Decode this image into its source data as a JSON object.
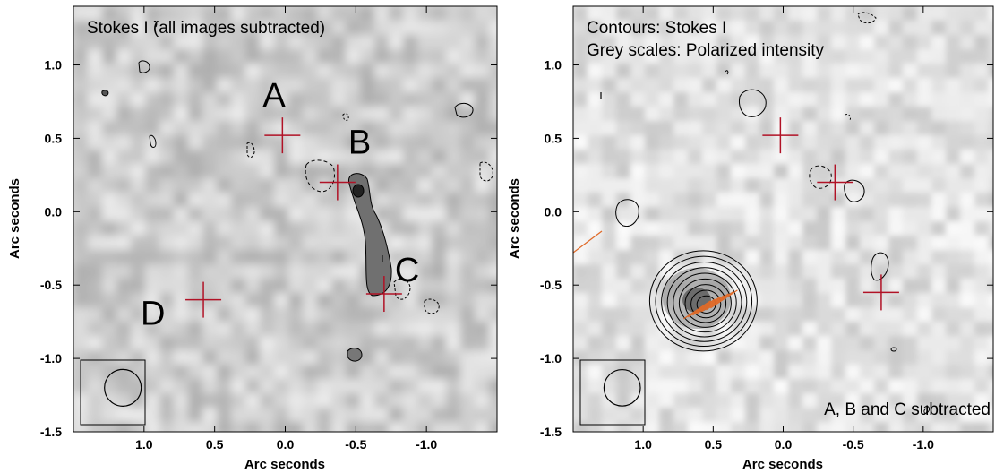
{
  "chart_data": [
    {
      "type": "image",
      "title_lines": [
        "Stokes I (all images subtracted)"
      ],
      "xlabel": "Arc seconds",
      "ylabel": "Arc seconds",
      "xlim": [
        1.5,
        -1.5
      ],
      "ylim": [
        -1.5,
        1.4
      ],
      "xticks": [
        1.0,
        0.5,
        0.0,
        -0.5,
        -1.0
      ],
      "xtick_labels": [
        "1.0",
        "0.5",
        "0.0",
        "-0.5",
        "-1.0"
      ],
      "yticks": [
        -1.5,
        -1.0,
        -0.5,
        0.0,
        0.5,
        1.0
      ],
      "ytick_labels": [
        "-1.5",
        "-1.0",
        "-0.5",
        "0.0",
        "0.5",
        "1.0"
      ],
      "markers": [
        {
          "label": "A",
          "x": 0.02,
          "y": 0.52
        },
        {
          "label": "B",
          "x": -0.37,
          "y": 0.2
        },
        {
          "label": "C",
          "x": -0.7,
          "y": -0.56
        },
        {
          "label": "D",
          "x": 0.58,
          "y": -0.6
        }
      ],
      "beam": {
        "x": 1.15,
        "y": -1.2,
        "radius": 0.13
      },
      "corner_note": ""
    },
    {
      "type": "image",
      "title_lines": [
        "Contours: Stokes I",
        "Grey scales: Polarized intensity"
      ],
      "xlabel": "Arc seconds",
      "ylabel": "Arc seconds",
      "xlim": [
        1.5,
        -1.5
      ],
      "ylim": [
        -1.5,
        1.4
      ],
      "xticks": [
        1.0,
        0.5,
        0.0,
        -0.5,
        -1.0
      ],
      "xtick_labels": [
        "1.0",
        "0.5",
        "0.0",
        "-0.5",
        "-1.0"
      ],
      "yticks": [
        -1.5,
        -1.0,
        -0.5,
        0.0,
        0.5,
        1.0
      ],
      "ytick_labels": [
        "-1.5",
        "-1.0",
        "-0.5",
        "0.0",
        "0.5",
        "1.0"
      ],
      "markers": [
        {
          "label": "",
          "x": 0.02,
          "y": 0.52
        },
        {
          "label": "",
          "x": -0.37,
          "y": 0.2
        },
        {
          "label": "",
          "x": -0.7,
          "y": -0.55
        }
      ],
      "source": {
        "x": 0.57,
        "y": -0.62,
        "n_contours": 9
      },
      "beam": {
        "x": 1.15,
        "y": -1.2,
        "radius": 0.13
      },
      "corner_note": "A, B and C subtracted"
    }
  ],
  "colors": {
    "marker": "#b11226",
    "vectors": "#e06a28",
    "contour": "#000000"
  }
}
